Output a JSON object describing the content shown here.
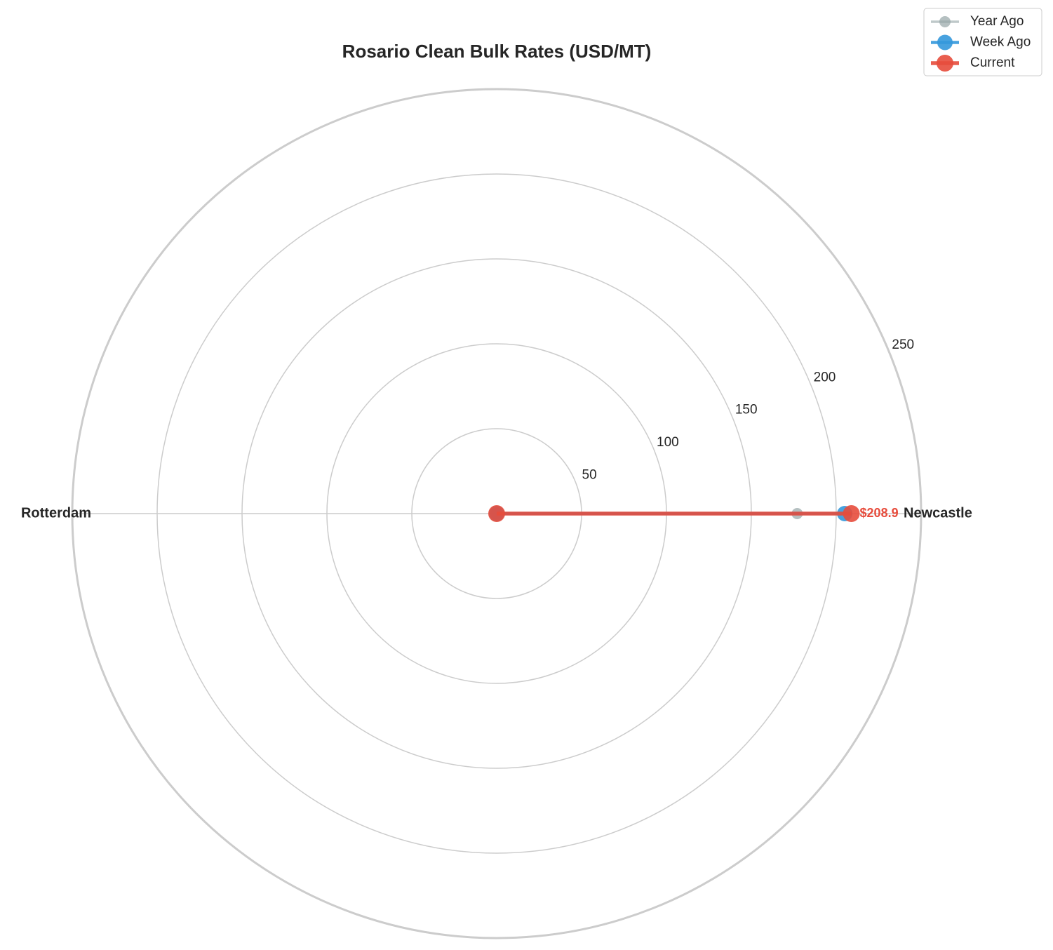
{
  "chart_data": {
    "type": "radar",
    "title": "Rosario Clean Bulk Rates (USD/MT)",
    "categories": [
      "Newcastle",
      "Rotterdam"
    ],
    "series": [
      {
        "name": "Year Ago",
        "color": "#95a5a6",
        "values": [
          177,
          0
        ]
      },
      {
        "name": "Week Ago",
        "color": "#3498db",
        "values": [
          205,
          0
        ]
      },
      {
        "name": "Current",
        "color": "#e74c3c",
        "values": [
          208.9,
          0
        ],
        "value_labels": [
          "$208.9",
          null
        ]
      }
    ],
    "rlim": [
      0,
      250
    ],
    "rticks": [
      50,
      100,
      150,
      200,
      250
    ],
    "grid": true,
    "legend": "upper right"
  }
}
